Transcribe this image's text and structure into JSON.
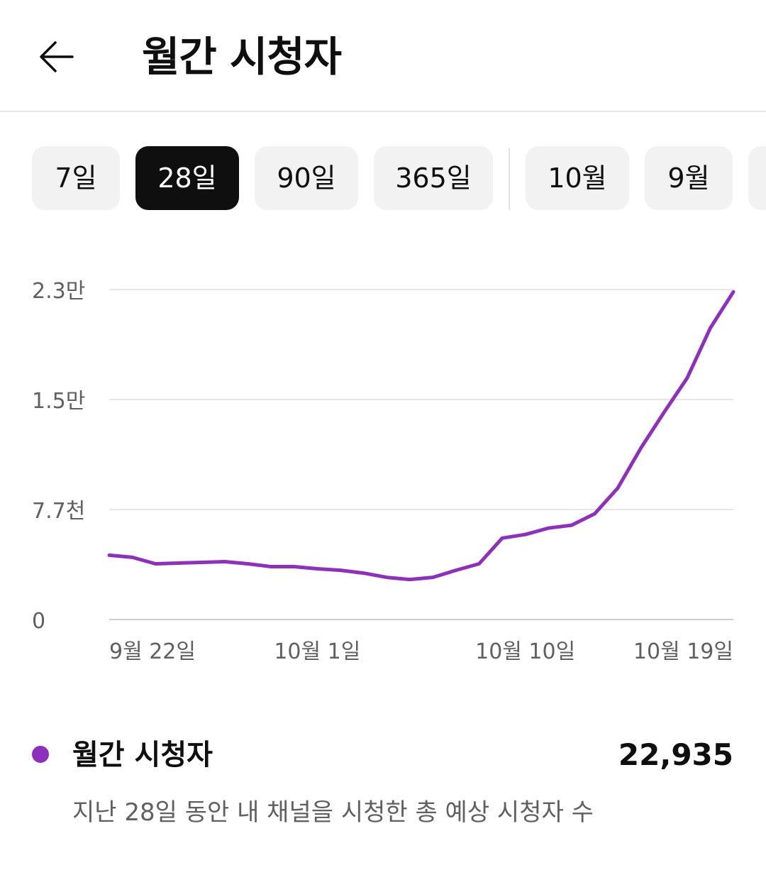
{
  "header": {
    "title": "월간 시청자",
    "back_icon": "arrow-left-icon"
  },
  "chips": [
    {
      "label": "7일",
      "active": false
    },
    {
      "label": "28일",
      "active": true
    },
    {
      "label": "90일",
      "active": false
    },
    {
      "label": "365일",
      "active": false
    },
    {
      "label": "10월",
      "active": false
    },
    {
      "label": "9월",
      "active": false
    }
  ],
  "chart_data": {
    "type": "line",
    "series": [
      {
        "color": "#8e30bd",
        "values": [
          4500,
          4350,
          3900,
          3950,
          4000,
          4050,
          3900,
          3700,
          3700,
          3550,
          3450,
          3250,
          2950,
          2800,
          2950,
          3450,
          3900,
          5700,
          5950,
          6400,
          6600,
          7400,
          9200,
          12000,
          14500,
          16900,
          20400,
          22935
        ]
      }
    ],
    "x_tick_labels": [
      {
        "label": "9월 22일",
        "index": 0
      },
      {
        "label": "10월 1일",
        "index": 9
      },
      {
        "label": "10월 10일",
        "index": 18
      },
      {
        "label": "10월 19일",
        "index": 27
      }
    ],
    "y_ticks": [
      {
        "value": 0,
        "label": "0"
      },
      {
        "value": 7700,
        "label": "7.7천"
      },
      {
        "value": 15400,
        "label": "1.5만"
      },
      {
        "value": 23100,
        "label": "2.3만"
      }
    ],
    "ylim": [
      0,
      23100
    ],
    "grid": true
  },
  "legend": {
    "name": "월간 시청자",
    "value": "22,935",
    "description": "지난 28일 동안 내 채널을 시청한 총 예상 시청자 수"
  }
}
